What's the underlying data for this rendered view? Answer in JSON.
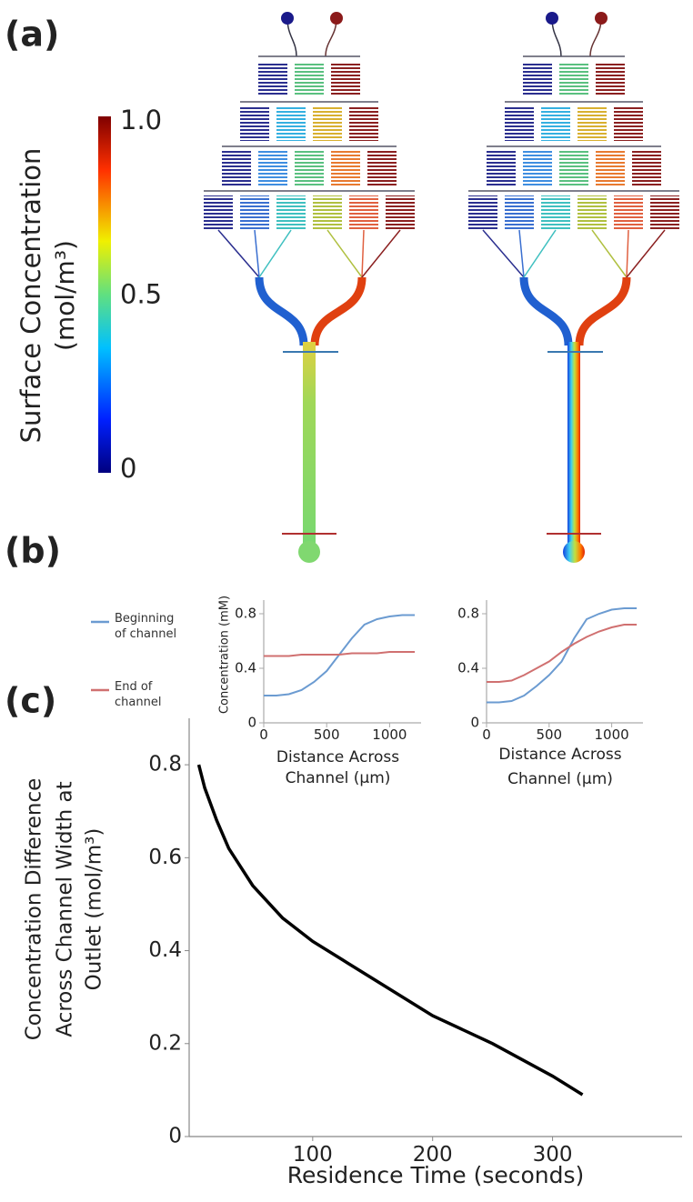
{
  "panel_labels": [
    "(a)",
    "(b)",
    "(c)"
  ],
  "colorbar": {
    "label": [
      "Surface Concentration",
      "(mol/m³)"
    ],
    "lim": [
      0,
      1
    ],
    "ticks": [
      0,
      0.5,
      {
        "value": 1,
        "label": "1.0"
      }
    ]
  },
  "chart_data": [
    {
      "type": "line",
      "ylabel": "Concentration (mM)",
      "xlabel": [
        "Distance Across",
        "Channel (µm)"
      ],
      "xlim": [
        0,
        1250
      ],
      "xticks": [
        0,
        500,
        1000
      ],
      "ylim": [
        0,
        0.9
      ],
      "yticks": [
        0,
        0.4,
        0.8
      ],
      "legend": "left",
      "x": [
        0,
        100,
        200,
        300,
        400,
        500,
        600,
        700,
        800,
        900,
        1000,
        1100,
        1200
      ],
      "series": [
        {
          "name": "Beginning of channel",
          "color": "#6b9bd1",
          "values": [
            0.2,
            0.2,
            0.21,
            0.24,
            0.3,
            0.38,
            0.5,
            0.62,
            0.72,
            0.76,
            0.78,
            0.79,
            0.79
          ]
        },
        {
          "name": "End of channel",
          "color": "#d07070",
          "values": [
            0.49,
            0.49,
            0.49,
            0.5,
            0.5,
            0.5,
            0.5,
            0.51,
            0.51,
            0.51,
            0.52,
            0.52,
            0.52
          ]
        }
      ]
    },
    {
      "type": "line",
      "xlabel": [
        "Distance Across",
        "Channel (µm)"
      ],
      "xlim": [
        0,
        1250
      ],
      "xticks": [
        0,
        500,
        1000
      ],
      "ylim": [
        0,
        0.9
      ],
      "yticks": [
        0,
        0.4,
        0.8
      ],
      "x": [
        0,
        100,
        200,
        300,
        400,
        500,
        600,
        700,
        800,
        900,
        1000,
        1100,
        1200
      ],
      "series": [
        {
          "name": "Beginning of channel",
          "color": "#6b9bd1",
          "values": [
            0.15,
            0.15,
            0.16,
            0.2,
            0.27,
            0.35,
            0.45,
            0.62,
            0.76,
            0.8,
            0.83,
            0.84,
            0.84
          ]
        },
        {
          "name": "End of channel",
          "color": "#d07070",
          "values": [
            0.3,
            0.3,
            0.31,
            0.35,
            0.4,
            0.45,
            0.52,
            0.58,
            0.63,
            0.67,
            0.7,
            0.72,
            0.72
          ]
        }
      ]
    },
    {
      "type": "line",
      "ylabel": [
        "Concentration Difference",
        "Across Channel Width at",
        "Outlet (mol/m³)"
      ],
      "xlabel": "Residence Time (seconds)",
      "xlim": [
        -3,
        408
      ],
      "xticks": [
        100,
        200,
        300
      ],
      "ylim": [
        0,
        0.9
      ],
      "yticks": [
        0,
        0.2,
        0.4,
        0.6,
        0.8
      ],
      "x": [
        5,
        10,
        20,
        30,
        50,
        75,
        100,
        125,
        150,
        200,
        250,
        300,
        325
      ],
      "values": [
        0.8,
        0.75,
        0.68,
        0.62,
        0.54,
        0.47,
        0.42,
        0.38,
        0.34,
        0.26,
        0.2,
        0.13,
        0.09
      ],
      "color": "#000000"
    }
  ]
}
